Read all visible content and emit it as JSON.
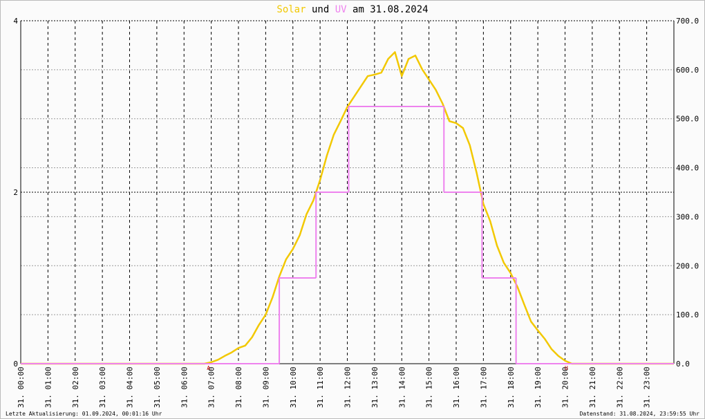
{
  "chart_data": {
    "type": "line",
    "title_words": [
      "und",
      "am 31.08.2024"
    ],
    "xlim": [
      0,
      24
    ],
    "xticks": [
      {
        "value": 0,
        "label": "31. 00:00"
      },
      {
        "value": 1,
        "label": "31. 01:00"
      },
      {
        "value": 2,
        "label": "31. 02:00"
      },
      {
        "value": 3,
        "label": "31. 03:00"
      },
      {
        "value": 4,
        "label": "31. 04:00"
      },
      {
        "value": 5,
        "label": "31. 05:00"
      },
      {
        "value": 6,
        "label": "31. 06:00"
      },
      {
        "value": 7,
        "label": "31. 07:00"
      },
      {
        "value": 8,
        "label": "31. 08:00"
      },
      {
        "value": 9,
        "label": "31. 09:00"
      },
      {
        "value": 10,
        "label": "31. 10:00"
      },
      {
        "value": 11,
        "label": "31. 11:00"
      },
      {
        "value": 12,
        "label": "31. 12:00"
      },
      {
        "value": 13,
        "label": "31. 13:00"
      },
      {
        "value": 14,
        "label": "31. 14:00"
      },
      {
        "value": 15,
        "label": "31. 15:00"
      },
      {
        "value": 16,
        "label": "31. 16:00"
      },
      {
        "value": 17,
        "label": "31. 17:00"
      },
      {
        "value": 18,
        "label": "31. 18:00"
      },
      {
        "value": 19,
        "label": "31. 19:00"
      },
      {
        "value": 20,
        "label": "31. 20:00"
      },
      {
        "value": 21,
        "label": "31. 21:00"
      },
      {
        "value": 22,
        "label": "31. 22:00"
      },
      {
        "value": 23,
        "label": "31. 23:00"
      }
    ],
    "ylim": [
      0,
      4
    ],
    "yticks": [
      0,
      2,
      4
    ],
    "y2lim": [
      0,
      700
    ],
    "y2ticks": [
      {
        "value": 0,
        "label": "0.0"
      },
      {
        "value": 100,
        "label": "100.0"
      },
      {
        "value": 200,
        "label": "200.0"
      },
      {
        "value": 300,
        "label": "300.0"
      },
      {
        "value": 400,
        "label": "400.0"
      },
      {
        "value": 500,
        "label": "500.0"
      },
      {
        "value": 600,
        "label": "600.0"
      },
      {
        "value": 700,
        "label": "700.0"
      }
    ],
    "grid": true,
    "series": [
      {
        "name": "Solar",
        "color": "#f2c800",
        "axis": "y2",
        "x": [
          0,
          6.75,
          7,
          7.25,
          7.5,
          7.75,
          8,
          8.25,
          8.5,
          8.75,
          9,
          9.25,
          9.5,
          9.75,
          10,
          10.25,
          10.5,
          10.75,
          11,
          11.25,
          11.5,
          11.75,
          12,
          12.25,
          12.5,
          12.75,
          13,
          13.25,
          13.5,
          13.75,
          14,
          14.25,
          14.5,
          14.75,
          15,
          15.25,
          15.5,
          15.75,
          16,
          16.25,
          16.5,
          16.75,
          17,
          17.25,
          17.5,
          17.75,
          18,
          18.25,
          18.5,
          18.75,
          19,
          19.25,
          19.5,
          19.75,
          20,
          20.25,
          24
        ],
        "values": [
          0,
          0,
          3,
          8,
          16,
          23,
          32,
          37,
          54,
          79,
          100,
          135,
          178,
          213,
          234,
          262,
          305,
          333,
          375,
          425,
          467,
          495,
          524,
          545,
          566,
          587,
          590,
          594,
          622,
          636,
          587,
          622,
          629,
          601,
          580,
          559,
          531,
          495,
          491,
          481,
          446,
          390,
          326,
          291,
          241,
          206,
          185,
          157,
          121,
          86,
          68,
          51,
          30,
          16,
          6,
          0,
          0
        ]
      },
      {
        "name": "UV",
        "color": "#ee82ee",
        "type": "step",
        "bins": [
          0,
          9.5,
          10.85,
          12.05,
          15.55,
          16.95,
          18.2,
          24
        ],
        "values": [
          0,
          1,
          2,
          3,
          2,
          1,
          0
        ]
      }
    ],
    "annotations": [
      {
        "text": "A",
        "x": 6.9,
        "color": "#cc0000"
      },
      {
        "text": "U",
        "x": 20.05,
        "color": "#cc0000"
      }
    ],
    "footer_left": "Letzte Aktualisierung: 01.09.2024, 00:01:16 Uhr",
    "footer_right": "Datenstand: 31.08.2024, 23:59:55 Uhr"
  }
}
